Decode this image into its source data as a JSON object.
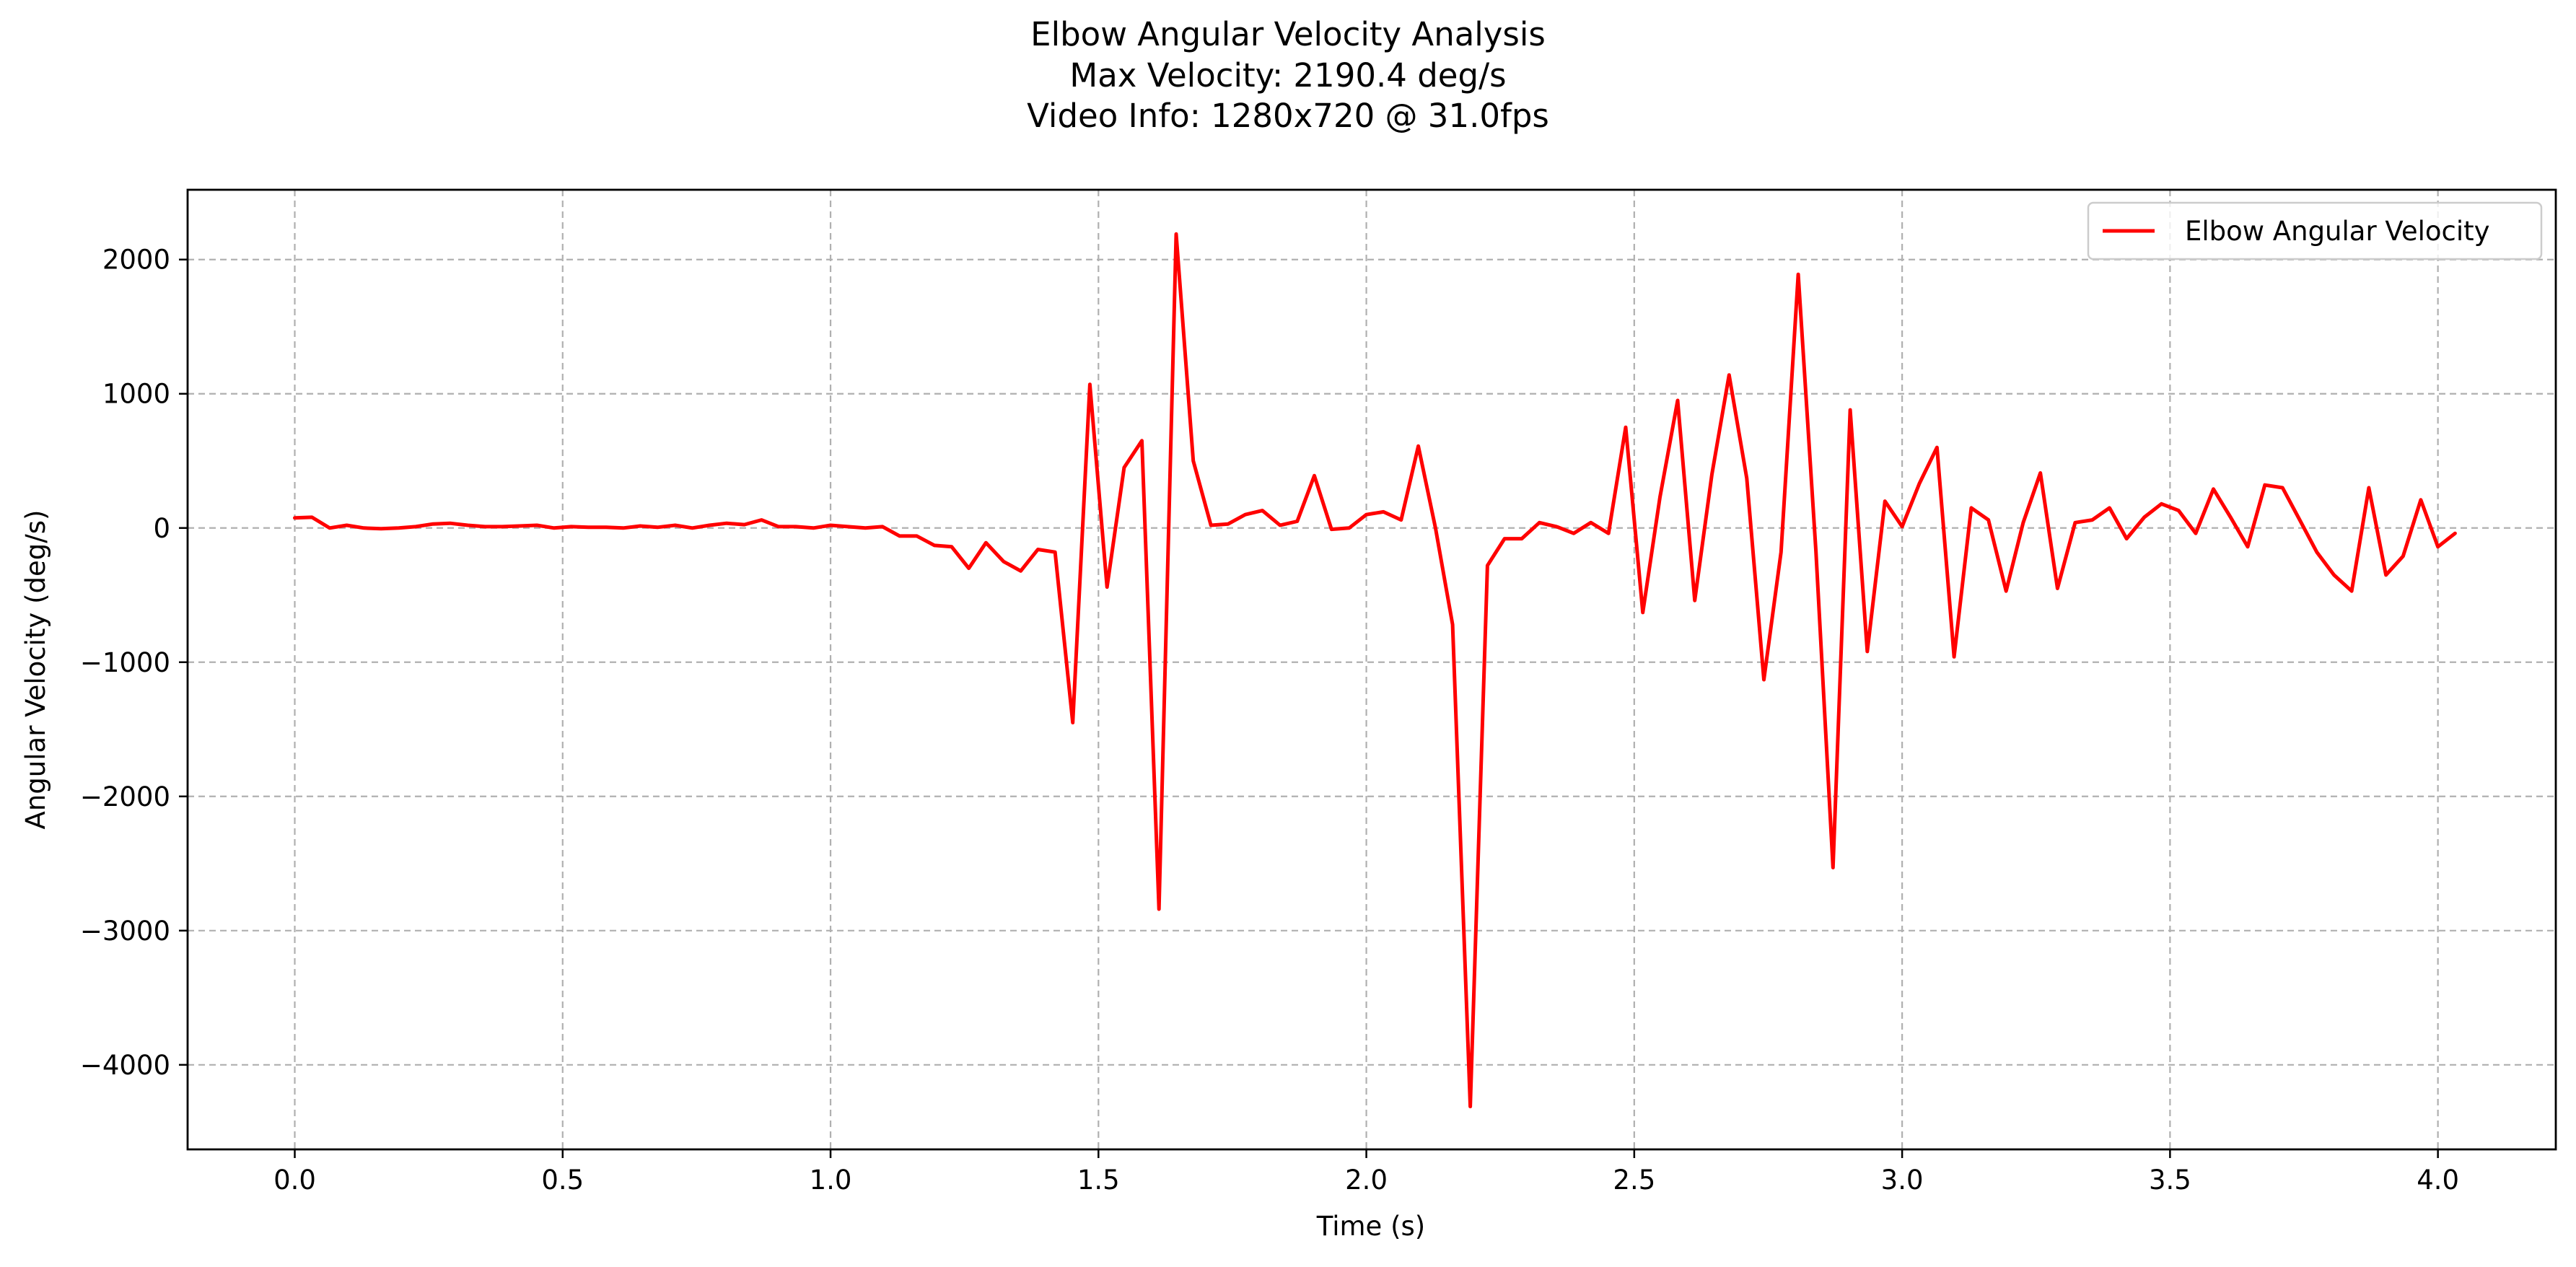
{
  "colors": {
    "series": "#ff0000",
    "grid": "#b0b0b0",
    "axes": "#000000",
    "background": "#ffffff"
  },
  "chart_data": {
    "type": "line",
    "title": "Elbow Angular Velocity Analysis",
    "subtitle_lines": [
      "Max Velocity: 2190.4 deg/s",
      "Video Info: 1280x720 @ 31.0fps"
    ],
    "xlabel": "Time (s)",
    "ylabel": "Angular Velocity (deg/s)",
    "xlim": [
      -0.2,
      4.22
    ],
    "ylim": [
      -4630,
      2520
    ],
    "xticks": [
      0.0,
      0.5,
      1.0,
      1.5,
      2.0,
      2.5,
      3.0,
      3.5,
      4.0
    ],
    "xtick_labels": [
      "0.0",
      "0.5",
      "1.0",
      "1.5",
      "2.0",
      "2.5",
      "3.0",
      "3.5",
      "4.0"
    ],
    "yticks": [
      2000,
      1000,
      0,
      -1000,
      -2000,
      -3000,
      -4000
    ],
    "ytick_labels": [
      "2000",
      "1000",
      "0",
      "−1000",
      "−2000",
      "−3000",
      "−4000"
    ],
    "grid": true,
    "legend_position": "top-right",
    "series": [
      {
        "name": "Elbow Angular Velocity",
        "color": "#ff0000",
        "x": [
          0.0,
          0.032,
          0.065,
          0.097,
          0.129,
          0.161,
          0.194,
          0.226,
          0.258,
          0.29,
          0.323,
          0.355,
          0.387,
          0.419,
          0.452,
          0.484,
          0.516,
          0.548,
          0.581,
          0.613,
          0.645,
          0.677,
          0.71,
          0.742,
          0.774,
          0.806,
          0.839,
          0.871,
          0.903,
          0.935,
          0.968,
          1.0,
          1.032,
          1.065,
          1.097,
          1.129,
          1.161,
          1.194,
          1.226,
          1.258,
          1.29,
          1.323,
          1.355,
          1.387,
          1.419,
          1.452,
          1.484,
          1.516,
          1.548,
          1.581,
          1.613,
          1.645,
          1.677,
          1.71,
          1.742,
          1.774,
          1.806,
          1.839,
          1.871,
          1.903,
          1.935,
          1.968,
          2.0,
          2.032,
          2.065,
          2.097,
          2.129,
          2.161,
          2.194,
          2.226,
          2.258,
          2.29,
          2.323,
          2.355,
          2.387,
          2.419,
          2.452,
          2.484,
          2.516,
          2.548,
          2.581,
          2.613,
          2.645,
          2.677,
          2.71,
          2.742,
          2.774,
          2.806,
          2.839,
          2.871,
          2.903,
          2.935,
          2.968,
          3.0,
          3.032,
          3.065,
          3.097,
          3.129,
          3.161,
          3.194,
          3.226,
          3.258,
          3.29,
          3.323,
          3.355,
          3.387,
          3.419,
          3.452,
          3.484,
          3.516,
          3.548,
          3.581,
          3.613,
          3.645,
          3.677,
          3.71,
          3.742,
          3.774,
          3.806,
          3.839,
          3.871,
          3.903,
          3.935,
          3.968,
          4.0,
          4.032
        ],
        "y": [
          75,
          80,
          0,
          20,
          0,
          -5,
          0,
          10,
          30,
          35,
          20,
          10,
          10,
          15,
          20,
          0,
          10,
          5,
          5,
          0,
          15,
          5,
          20,
          0,
          20,
          35,
          25,
          60,
          10,
          10,
          0,
          20,
          10,
          0,
          10,
          -60,
          -60,
          -130,
          -140,
          -300,
          -110,
          -250,
          -320,
          -160,
          -180,
          -1450,
          1070,
          -440,
          450,
          650,
          -2840,
          2190,
          500,
          20,
          30,
          100,
          130,
          20,
          50,
          390,
          -10,
          0,
          100,
          120,
          60,
          610,
          0,
          -720,
          -4310,
          -280,
          -80,
          -80,
          40,
          10,
          -40,
          40,
          -40,
          750,
          -630,
          230,
          950,
          -540,
          400,
          1140,
          370,
          -1130,
          -180,
          1890,
          -170,
          -2530,
          880,
          -920,
          200,
          10,
          330,
          600,
          -960,
          150,
          60,
          -470,
          40,
          410,
          -450,
          40,
          60,
          150,
          -80,
          80,
          180,
          130,
          -40,
          290,
          80,
          -140,
          320,
          300,
          60,
          -180,
          -350,
          -470,
          300,
          -350,
          -210,
          210,
          -140,
          -40
        ]
      }
    ]
  }
}
